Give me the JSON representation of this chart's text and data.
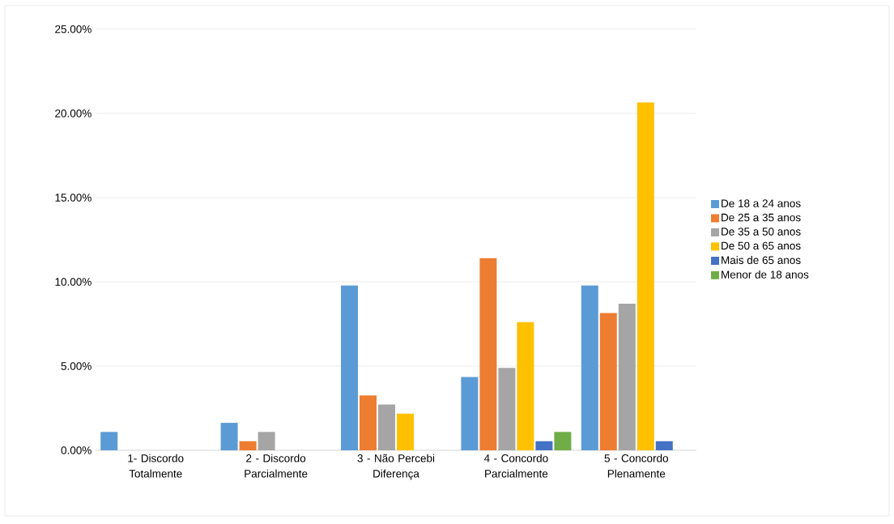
{
  "chart_data": {
    "type": "bar",
    "categories": [
      "1- Discordo Totalmente",
      "2 - Discordo Parcialmente",
      "3 - Não Percebi Diferença",
      "4 - Concordo Parcialmente",
      "5 - Concordo Plenamente"
    ],
    "series": [
      {
        "name": "De 18 a 24 anos",
        "color": "#5b9bd5",
        "values": [
          1.09,
          1.63,
          9.78,
          4.35,
          9.78
        ]
      },
      {
        "name": "De 25 a 35 anos",
        "color": "#ed7d31",
        "values": [
          0,
          0.54,
          3.26,
          11.41,
          8.15
        ]
      },
      {
        "name": "De 35 a 50 anos",
        "color": "#a5a5a5",
        "values": [
          0,
          1.09,
          2.72,
          4.89,
          8.7
        ]
      },
      {
        "name": "De 50 a 65 anos",
        "color": "#ffc000",
        "values": [
          0,
          0,
          2.17,
          7.61,
          20.65
        ]
      },
      {
        "name": "Mais de 65 anos",
        "color": "#4472c4",
        "values": [
          0,
          0,
          0,
          0.54,
          0.54
        ]
      },
      {
        "name": "Menor de 18 anos",
        "color": "#70ad47",
        "values": [
          0,
          0,
          0,
          1.09,
          0
        ]
      }
    ],
    "ylim": [
      0,
      25
    ],
    "yticks": [
      {
        "value": 0,
        "label": "0.00%"
      },
      {
        "value": 5,
        "label": "5.00%"
      },
      {
        "value": 10,
        "label": "10.00%"
      },
      {
        "value": 15,
        "label": "15.00%"
      },
      {
        "value": 20,
        "label": "20.00%"
      },
      {
        "value": 25,
        "label": "25.00%"
      }
    ],
    "grid": "y",
    "legend": "right"
  }
}
